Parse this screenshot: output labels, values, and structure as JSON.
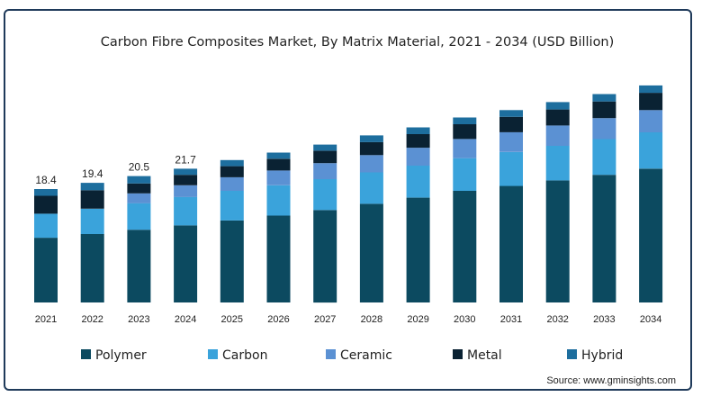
{
  "chart_data": {
    "type": "bar",
    "stacked": true,
    "title": "Carbon Fibre Composites Market, By Matrix Material, 2021 - 2034 (USD Billion)",
    "categories": [
      "2021",
      "2022",
      "2023",
      "2024",
      "2025",
      "2026",
      "2027",
      "2028",
      "2029",
      "2030",
      "2031",
      "2032",
      "2033",
      "2034"
    ],
    "series": [
      {
        "name": "Polymer",
        "color": "#0c4a60",
        "values": [
          10.5,
          11.1,
          11.8,
          12.5,
          13.3,
          14.1,
          15.0,
          16.0,
          17.0,
          18.1,
          18.9,
          19.8,
          20.7,
          21.7
        ]
      },
      {
        "name": "Carbon",
        "color": "#3aa3db",
        "values": [
          3.9,
          4.1,
          4.3,
          4.6,
          4.8,
          4.9,
          5.0,
          5.1,
          5.2,
          5.3,
          5.5,
          5.6,
          5.8,
          5.9
        ]
      },
      {
        "name": "Ceramic",
        "color": "#5b91d3",
        "values": [
          0.0,
          0.0,
          1.6,
          1.9,
          2.2,
          2.4,
          2.6,
          2.8,
          2.9,
          3.1,
          3.2,
          3.3,
          3.4,
          3.6
        ]
      },
      {
        "name": "Metal",
        "color": "#0a2233",
        "values": [
          2.9,
          3.0,
          1.6,
          1.7,
          1.8,
          1.9,
          2.0,
          2.1,
          2.2,
          2.4,
          2.5,
          2.6,
          2.7,
          2.8
        ]
      },
      {
        "name": "Hybrid",
        "color": "#1d6e9e",
        "values": [
          1.1,
          1.2,
          1.2,
          1.0,
          1.0,
          1.0,
          1.0,
          1.1,
          1.1,
          1.1,
          1.1,
          1.2,
          1.2,
          1.2
        ]
      }
    ],
    "data_labels": [
      "18.4",
      "19.4",
      "20.5",
      "21.7",
      "",
      "",
      "",
      "",
      "",
      "",
      "",
      "",
      "",
      ""
    ],
    "ylim": [
      0,
      36
    ],
    "grid": false,
    "legend": "bottom",
    "source": "Source: www.gminsights.com"
  }
}
